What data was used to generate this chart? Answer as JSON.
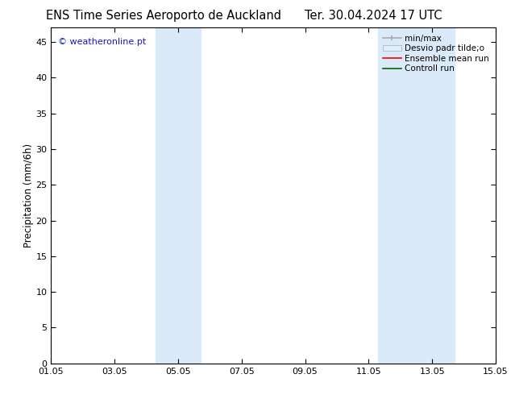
{
  "title": "ENS Time Series Aeroporto de Auckland",
  "title2": "Ter. 30.04.2024 17 UTC",
  "ylabel": "Precipitation (mm/6h)",
  "xlabel_ticks": [
    "01.05",
    "03.05",
    "05.05",
    "07.05",
    "09.05",
    "11.05",
    "13.05",
    "15.05"
  ],
  "xtick_positions": [
    0,
    2,
    4,
    6,
    8,
    10,
    12,
    14
  ],
  "xlim": [
    0,
    14
  ],
  "ylim": [
    0,
    47
  ],
  "yticks": [
    0,
    5,
    10,
    15,
    20,
    25,
    30,
    35,
    40,
    45
  ],
  "shaded_bands": [
    {
      "x_start": 3.3,
      "x_end": 4.7
    },
    {
      "x_start": 10.3,
      "x_end": 12.7
    }
  ],
  "shaded_color": "#daeaf8",
  "background_color": "#ffffff",
  "watermark_text": "© weatheronline.pt",
  "watermark_color": "#1515cc",
  "minmax_color": "#aaaaaa",
  "std_facecolor": "#ddeeff",
  "std_edgecolor": "#aaaaaa",
  "ensemble_color": "#ff0000",
  "control_color": "#006600",
  "tick_label_fontsize": 8,
  "axis_label_fontsize": 8.5,
  "title_fontsize": 10.5,
  "legend_fontsize": 7.5
}
